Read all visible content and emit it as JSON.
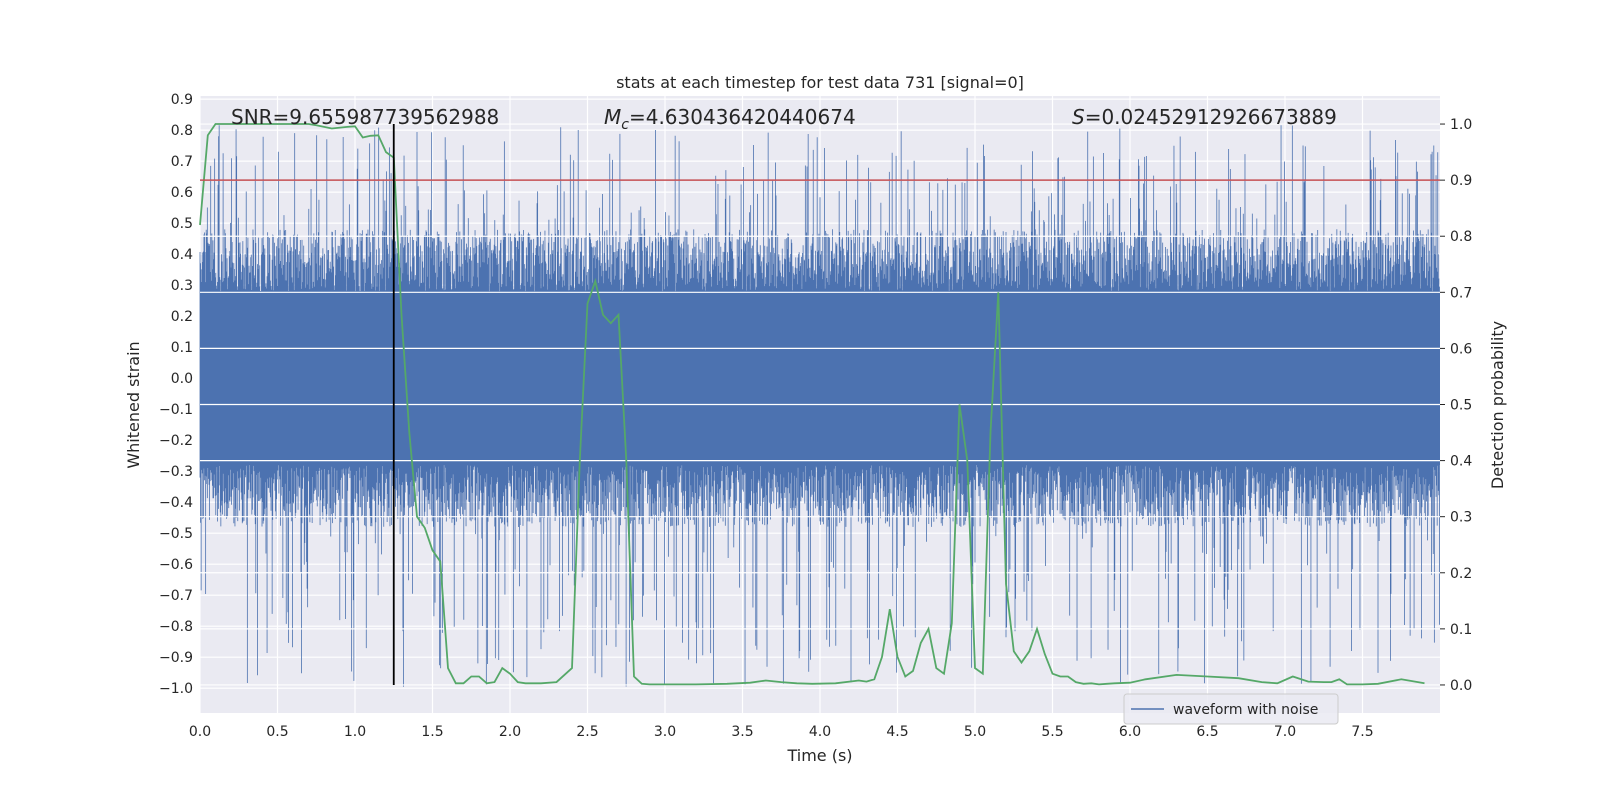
{
  "chart_data": {
    "type": "line",
    "title": "stats at each timestep for test data 731 [signal=0]",
    "xlabel": "Time (s)",
    "ylabel_left": "Whitened strain",
    "ylabel_right": "Detection probability",
    "xlim": [
      0.0,
      8.0
    ],
    "ylim_left": [
      -1.08,
      0.91
    ],
    "ylim_right": [
      -0.05,
      1.05
    ],
    "xticks": [
      "0.0",
      "0.5",
      "1.0",
      "1.5",
      "2.0",
      "2.5",
      "3.0",
      "3.5",
      "4.0",
      "4.5",
      "5.0",
      "5.5",
      "6.0",
      "6.5",
      "7.0",
      "7.5"
    ],
    "yticks_left": [
      "0.9",
      "0.8",
      "0.7",
      "0.6",
      "0.5",
      "0.4",
      "0.3",
      "0.2",
      "0.1",
      "0.0",
      "−0.1",
      "−0.2",
      "−0.3",
      "−0.4",
      "−0.5",
      "−0.6",
      "−0.7",
      "−0.8",
      "−0.9",
      "−1.0"
    ],
    "yticks_right": [
      "1.0",
      "0.9",
      "0.8",
      "0.7",
      "0.6",
      "0.5",
      "0.4",
      "0.3",
      "0.2",
      "0.1",
      "0.0"
    ],
    "annotations": {
      "snr": "SNR=9.655987739562988",
      "mc_symbol": "M",
      "mc_subscript": "c",
      "mc_value": "=4.630436420440674",
      "s_symbol": "S",
      "s_value": "=0.02452912926673889"
    },
    "legend": {
      "label": "waveform with noise",
      "position": "lower-right"
    },
    "grid": true,
    "threshold": {
      "value": 0.9,
      "axis": "right",
      "color": "#c44e52"
    },
    "marker_time": 1.25,
    "waveform": {
      "name": "waveform with noise",
      "color": "#4c72b0",
      "amplitude_core": 0.28,
      "amplitude_peak_max": 0.82,
      "amplitude_trough_min": -1.0,
      "samples": 2200,
      "seed": 731
    },
    "detection_probability": {
      "color": "#55a868",
      "x": [
        0.0,
        0.05,
        0.1,
        0.15,
        0.2,
        0.3,
        0.4,
        0.5,
        0.6,
        0.7,
        0.75,
        0.85,
        0.95,
        1.0,
        1.05,
        1.1,
        1.15,
        1.2,
        1.25,
        1.3,
        1.35,
        1.4,
        1.45,
        1.5,
        1.55,
        1.6,
        1.65,
        1.7,
        1.75,
        1.8,
        1.85,
        1.9,
        1.95,
        2.0,
        2.05,
        2.1,
        2.2,
        2.3,
        2.4,
        2.45,
        2.5,
        2.55,
        2.6,
        2.65,
        2.7,
        2.75,
        2.8,
        2.85,
        2.9,
        3.0,
        3.2,
        3.4,
        3.55,
        3.65,
        3.75,
        3.85,
        3.95,
        4.1,
        4.25,
        4.3,
        4.35,
        4.4,
        4.45,
        4.5,
        4.55,
        4.6,
        4.65,
        4.7,
        4.75,
        4.8,
        4.85,
        4.9,
        4.95,
        5.0,
        5.05,
        5.1,
        5.15,
        5.2,
        5.25,
        5.3,
        5.35,
        5.4,
        5.45,
        5.5,
        5.55,
        5.6,
        5.65,
        5.7,
        5.75,
        5.8,
        5.85,
        5.9,
        6.0,
        6.1,
        6.3,
        6.5,
        6.7,
        6.85,
        6.95,
        7.05,
        7.15,
        7.25,
        7.3,
        7.35,
        7.4,
        7.5,
        7.6,
        7.75,
        7.9
      ],
      "y": [
        0.82,
        0.98,
        1.0,
        1.0,
        1.0,
        1.0,
        1.0,
        1.0,
        1.0,
        1.0,
        0.998,
        0.992,
        0.995,
        0.996,
        0.976,
        0.979,
        0.98,
        0.95,
        0.94,
        0.66,
        0.45,
        0.3,
        0.28,
        0.24,
        0.22,
        0.03,
        0.003,
        0.003,
        0.015,
        0.015,
        0.003,
        0.005,
        0.03,
        0.02,
        0.005,
        0.003,
        0.003,
        0.005,
        0.03,
        0.4,
        0.68,
        0.72,
        0.66,
        0.645,
        0.66,
        0.4,
        0.015,
        0.002,
        0.001,
        0.001,
        0.001,
        0.002,
        0.004,
        0.008,
        0.005,
        0.003,
        0.002,
        0.003,
        0.008,
        0.006,
        0.01,
        0.05,
        0.135,
        0.05,
        0.015,
        0.025,
        0.075,
        0.1,
        0.03,
        0.02,
        0.11,
        0.5,
        0.4,
        0.03,
        0.02,
        0.45,
        0.7,
        0.18,
        0.06,
        0.04,
        0.06,
        0.1,
        0.055,
        0.02,
        0.015,
        0.015,
        0.005,
        0.002,
        0.003,
        0.001,
        0.002,
        0.003,
        0.004,
        0.01,
        0.018,
        0.015,
        0.012,
        0.005,
        0.003,
        0.015,
        0.006,
        0.005,
        0.005,
        0.01,
        0.001,
        0.001,
        0.002,
        0.01,
        0.003
      ]
    }
  }
}
